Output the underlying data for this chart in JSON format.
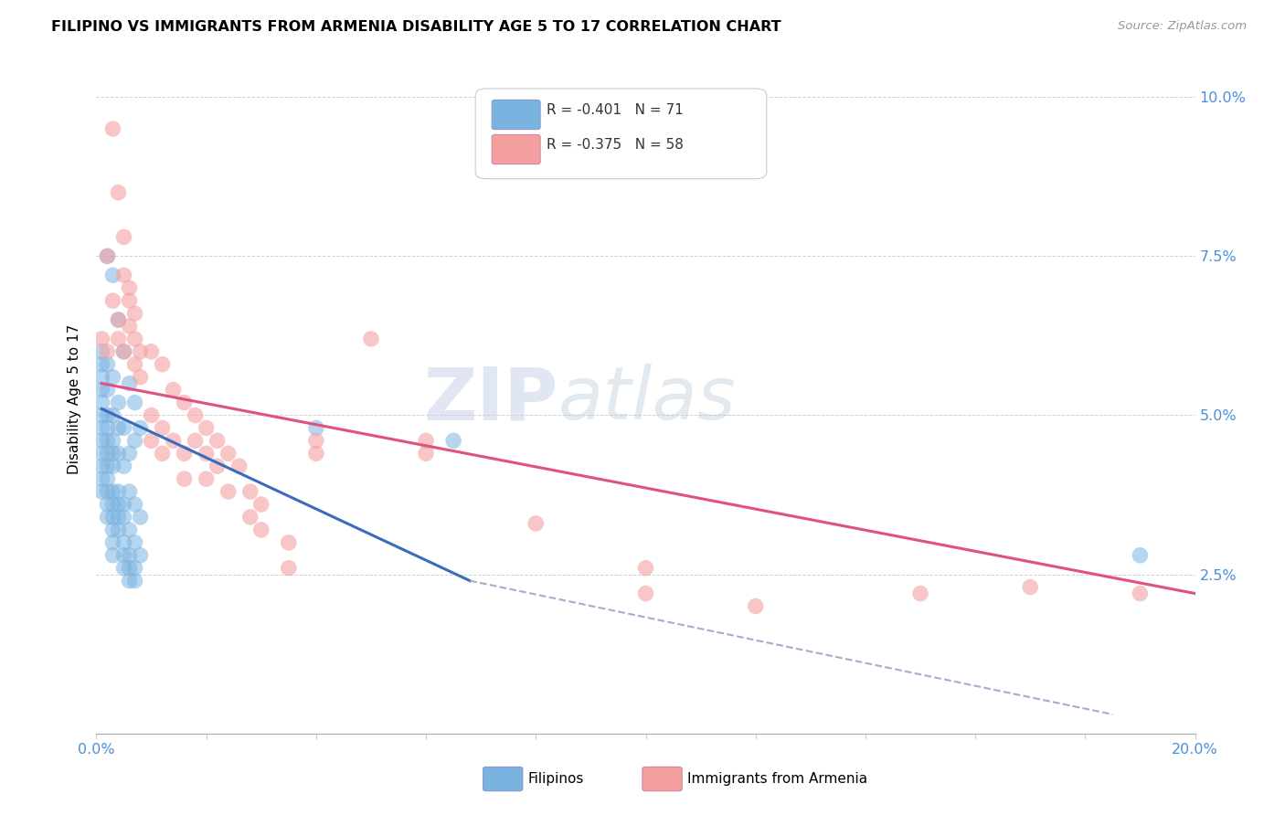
{
  "title": "FILIPINO VS IMMIGRANTS FROM ARMENIA DISABILITY AGE 5 TO 17 CORRELATION CHART",
  "source": "Source: ZipAtlas.com",
  "ylabel": "Disability Age 5 to 17",
  "filipino_color": "#7ab3e0",
  "armenia_color": "#f4a0a0",
  "blue_line_color": "#3a6bbf",
  "pink_line_color": "#e05080",
  "dashed_line_color": "#aaaacc",
  "watermark_zip": "ZIP",
  "watermark_atlas": "atlas",
  "xmin": 0.0,
  "xmax": 0.2,
  "ymin": 0.0,
  "ymax": 0.105,
  "filipino_scatter": [
    [
      0.001,
      0.06
    ],
    [
      0.001,
      0.058
    ],
    [
      0.001,
      0.056
    ],
    [
      0.001,
      0.054
    ],
    [
      0.001,
      0.052
    ],
    [
      0.001,
      0.05
    ],
    [
      0.001,
      0.048
    ],
    [
      0.001,
      0.046
    ],
    [
      0.001,
      0.044
    ],
    [
      0.001,
      0.042
    ],
    [
      0.001,
      0.04
    ],
    [
      0.001,
      0.038
    ],
    [
      0.002,
      0.075
    ],
    [
      0.002,
      0.058
    ],
    [
      0.002,
      0.054
    ],
    [
      0.002,
      0.05
    ],
    [
      0.002,
      0.048
    ],
    [
      0.002,
      0.046
    ],
    [
      0.002,
      0.044
    ],
    [
      0.002,
      0.042
    ],
    [
      0.002,
      0.04
    ],
    [
      0.002,
      0.038
    ],
    [
      0.002,
      0.036
    ],
    [
      0.002,
      0.034
    ],
    [
      0.003,
      0.072
    ],
    [
      0.003,
      0.056
    ],
    [
      0.003,
      0.05
    ],
    [
      0.003,
      0.046
    ],
    [
      0.003,
      0.044
    ],
    [
      0.003,
      0.042
    ],
    [
      0.003,
      0.038
    ],
    [
      0.003,
      0.036
    ],
    [
      0.003,
      0.034
    ],
    [
      0.003,
      0.032
    ],
    [
      0.003,
      0.03
    ],
    [
      0.003,
      0.028
    ],
    [
      0.004,
      0.065
    ],
    [
      0.004,
      0.052
    ],
    [
      0.004,
      0.048
    ],
    [
      0.004,
      0.044
    ],
    [
      0.004,
      0.038
    ],
    [
      0.004,
      0.036
    ],
    [
      0.004,
      0.034
    ],
    [
      0.004,
      0.032
    ],
    [
      0.005,
      0.06
    ],
    [
      0.005,
      0.048
    ],
    [
      0.005,
      0.042
    ],
    [
      0.005,
      0.036
    ],
    [
      0.005,
      0.034
    ],
    [
      0.005,
      0.03
    ],
    [
      0.005,
      0.028
    ],
    [
      0.005,
      0.026
    ],
    [
      0.006,
      0.055
    ],
    [
      0.006,
      0.044
    ],
    [
      0.006,
      0.038
    ],
    [
      0.006,
      0.032
    ],
    [
      0.006,
      0.028
    ],
    [
      0.006,
      0.026
    ],
    [
      0.006,
      0.024
    ],
    [
      0.007,
      0.052
    ],
    [
      0.007,
      0.046
    ],
    [
      0.007,
      0.036
    ],
    [
      0.007,
      0.03
    ],
    [
      0.007,
      0.026
    ],
    [
      0.007,
      0.024
    ],
    [
      0.008,
      0.048
    ],
    [
      0.008,
      0.034
    ],
    [
      0.008,
      0.028
    ],
    [
      0.04,
      0.048
    ],
    [
      0.065,
      0.046
    ],
    [
      0.19,
      0.028
    ]
  ],
  "armenia_scatter": [
    [
      0.001,
      0.062
    ],
    [
      0.002,
      0.075
    ],
    [
      0.002,
      0.06
    ],
    [
      0.003,
      0.095
    ],
    [
      0.003,
      0.068
    ],
    [
      0.004,
      0.085
    ],
    [
      0.004,
      0.065
    ],
    [
      0.004,
      0.062
    ],
    [
      0.005,
      0.078
    ],
    [
      0.005,
      0.072
    ],
    [
      0.005,
      0.06
    ],
    [
      0.006,
      0.07
    ],
    [
      0.006,
      0.068
    ],
    [
      0.006,
      0.064
    ],
    [
      0.007,
      0.066
    ],
    [
      0.007,
      0.062
    ],
    [
      0.007,
      0.058
    ],
    [
      0.008,
      0.06
    ],
    [
      0.008,
      0.056
    ],
    [
      0.01,
      0.06
    ],
    [
      0.01,
      0.05
    ],
    [
      0.01,
      0.046
    ],
    [
      0.012,
      0.058
    ],
    [
      0.012,
      0.048
    ],
    [
      0.012,
      0.044
    ],
    [
      0.014,
      0.054
    ],
    [
      0.014,
      0.046
    ],
    [
      0.016,
      0.052
    ],
    [
      0.016,
      0.044
    ],
    [
      0.016,
      0.04
    ],
    [
      0.018,
      0.05
    ],
    [
      0.018,
      0.046
    ],
    [
      0.02,
      0.048
    ],
    [
      0.02,
      0.044
    ],
    [
      0.02,
      0.04
    ],
    [
      0.022,
      0.046
    ],
    [
      0.022,
      0.042
    ],
    [
      0.024,
      0.044
    ],
    [
      0.024,
      0.038
    ],
    [
      0.026,
      0.042
    ],
    [
      0.028,
      0.038
    ],
    [
      0.028,
      0.034
    ],
    [
      0.03,
      0.036
    ],
    [
      0.03,
      0.032
    ],
    [
      0.035,
      0.03
    ],
    [
      0.035,
      0.026
    ],
    [
      0.04,
      0.046
    ],
    [
      0.04,
      0.044
    ],
    [
      0.05,
      0.062
    ],
    [
      0.06,
      0.046
    ],
    [
      0.06,
      0.044
    ],
    [
      0.08,
      0.033
    ],
    [
      0.1,
      0.026
    ],
    [
      0.1,
      0.022
    ],
    [
      0.12,
      0.02
    ],
    [
      0.15,
      0.022
    ],
    [
      0.17,
      0.023
    ],
    [
      0.19,
      0.022
    ]
  ],
  "filipino_line_x": [
    0.001,
    0.068
  ],
  "filipino_line_y": [
    0.051,
    0.024
  ],
  "armenia_line_x": [
    0.001,
    0.2
  ],
  "armenia_line_y": [
    0.055,
    0.022
  ],
  "dashed_line_x": [
    0.068,
    0.185
  ],
  "dashed_line_y": [
    0.024,
    0.003
  ]
}
